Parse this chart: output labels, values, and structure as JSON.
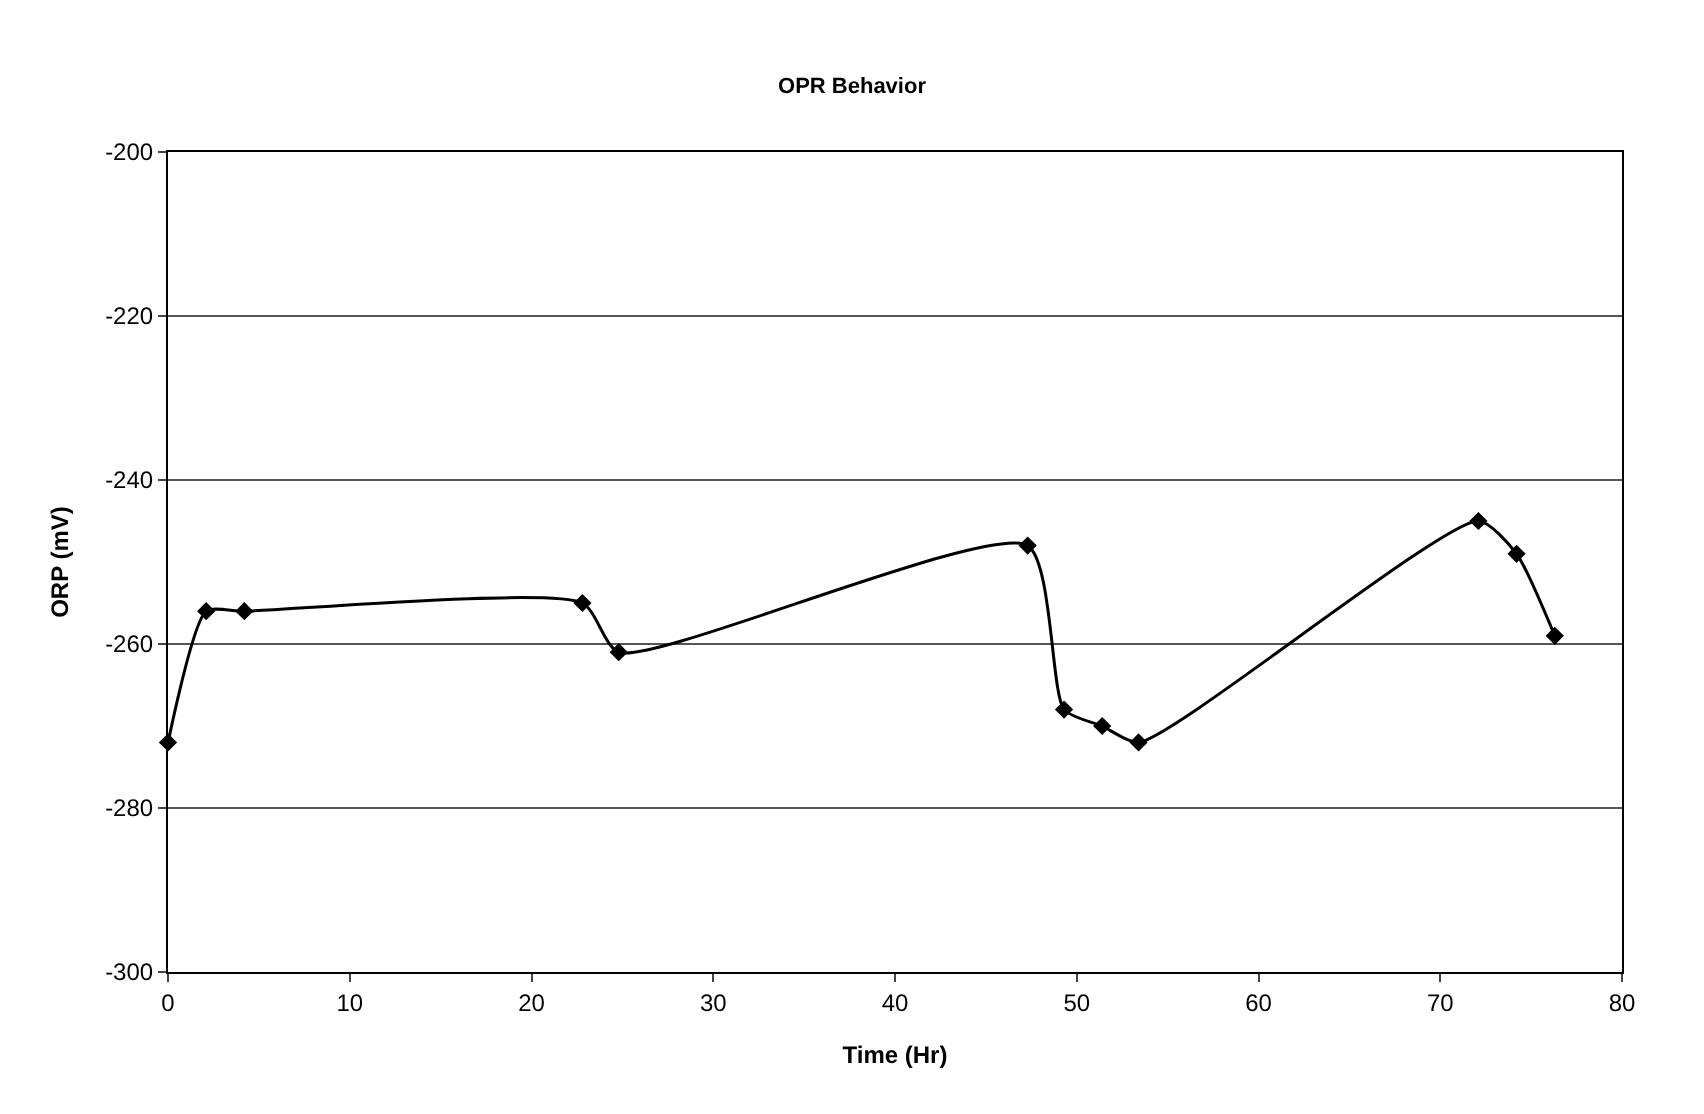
{
  "chart_data": {
    "type": "line",
    "title": "OPR Behavior",
    "xlabel": "Time (Hr)",
    "ylabel": "ORP (mV)",
    "x": [
      0,
      2.1,
      4.2,
      22.8,
      24.8,
      47.3,
      49.3,
      51.4,
      53.4,
      72.1,
      74.2,
      76.3
    ],
    "series": [
      {
        "color": "#000000",
        "values": [
          -272,
          -256,
          -256,
          -255,
          -261,
          -248,
          -268,
          -270,
          -272,
          -245,
          -249,
          -259
        ]
      }
    ],
    "xlim": [
      0,
      80
    ],
    "xticks": [
      0,
      10,
      20,
      30,
      40,
      50,
      60,
      70,
      80
    ],
    "ylim": [
      -300,
      -200
    ],
    "yticks": [
      -300,
      -280,
      -260,
      -240,
      -220,
      -200
    ],
    "grid": "y",
    "legend": false,
    "marker": "diamond",
    "line_style": "solid"
  }
}
